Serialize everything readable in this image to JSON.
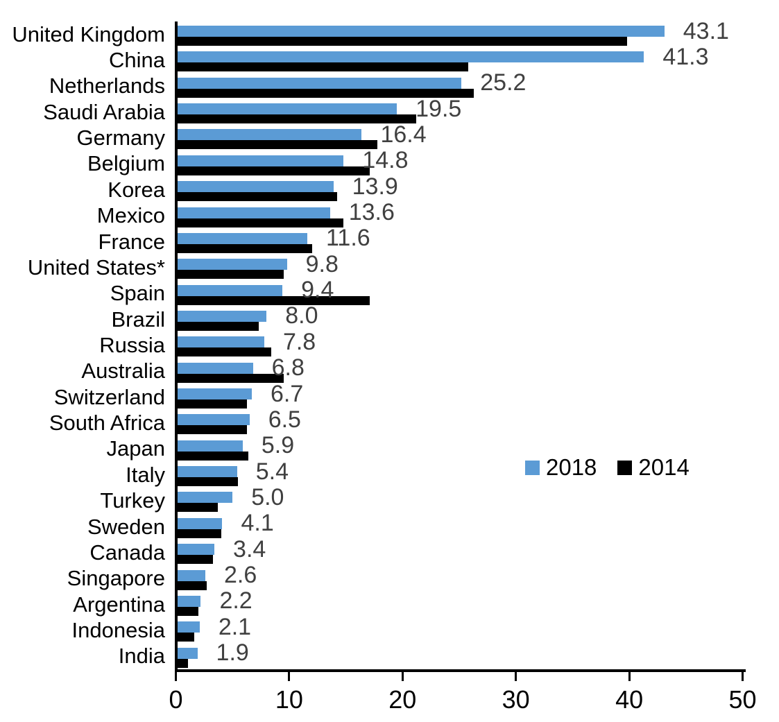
{
  "chart_data": {
    "type": "bar",
    "orientation": "horizontal",
    "title": "",
    "xlabel": "",
    "ylabel": "",
    "grid": false,
    "categories": [
      "United Kingdom",
      "China",
      "Netherlands",
      "Saudi Arabia",
      "Germany",
      "Belgium",
      "Korea",
      "Mexico",
      "France",
      "United States*",
      "Spain",
      "Brazil",
      "Russia",
      "Australia",
      "Switzerland",
      "South Africa",
      "Japan",
      "Italy",
      "Turkey",
      "Sweden",
      "Canada",
      "Singapore",
      "Argentina",
      "Indonesia",
      "India"
    ],
    "series": [
      {
        "name": "2018",
        "color": "#5B9BD5",
        "values": [
          43.1,
          41.3,
          25.2,
          19.5,
          16.4,
          14.8,
          13.9,
          13.6,
          11.6,
          9.8,
          9.4,
          8.0,
          7.8,
          6.8,
          6.7,
          6.5,
          5.9,
          5.4,
          5.0,
          4.1,
          3.4,
          2.6,
          2.2,
          2.1,
          1.9
        ]
      },
      {
        "name": "2014",
        "color": "#000000",
        "values": [
          39.8,
          25.8,
          26.3,
          21.2,
          17.8,
          17.1,
          14.2,
          14.8,
          12.0,
          9.5,
          17.1,
          7.3,
          8.4,
          9.5,
          6.3,
          6.3,
          6.4,
          5.5,
          3.7,
          4.0,
          3.3,
          2.7,
          2.0,
          1.6,
          1.1
        ]
      }
    ],
    "data_labels": {
      "labeled_series": "2018",
      "color": "#404040",
      "values": [
        "43.1",
        "41.3",
        "25.2",
        "19.5",
        "16.4",
        "14.8",
        "13.9",
        "13.6",
        "11.6",
        "9.8",
        "9.4",
        "8.0",
        "7.8",
        "6.8",
        "6.7",
        "6.5",
        "5.9",
        "5.4",
        "5.0",
        "4.1",
        "3.4",
        "2.6",
        "2.2",
        "2.1",
        "1.9"
      ]
    },
    "x_axis": {
      "min": 0,
      "max": 50,
      "ticks": [
        "0",
        "10",
        "20",
        "30",
        "40",
        "50"
      ],
      "tick_values": [
        0,
        10,
        20,
        30,
        40,
        50
      ]
    },
    "legend": {
      "position": "middle-right",
      "entries": [
        {
          "label": "2018",
          "color": "#5B9BD5"
        },
        {
          "label": "2014",
          "color": "#000000"
        }
      ]
    }
  }
}
